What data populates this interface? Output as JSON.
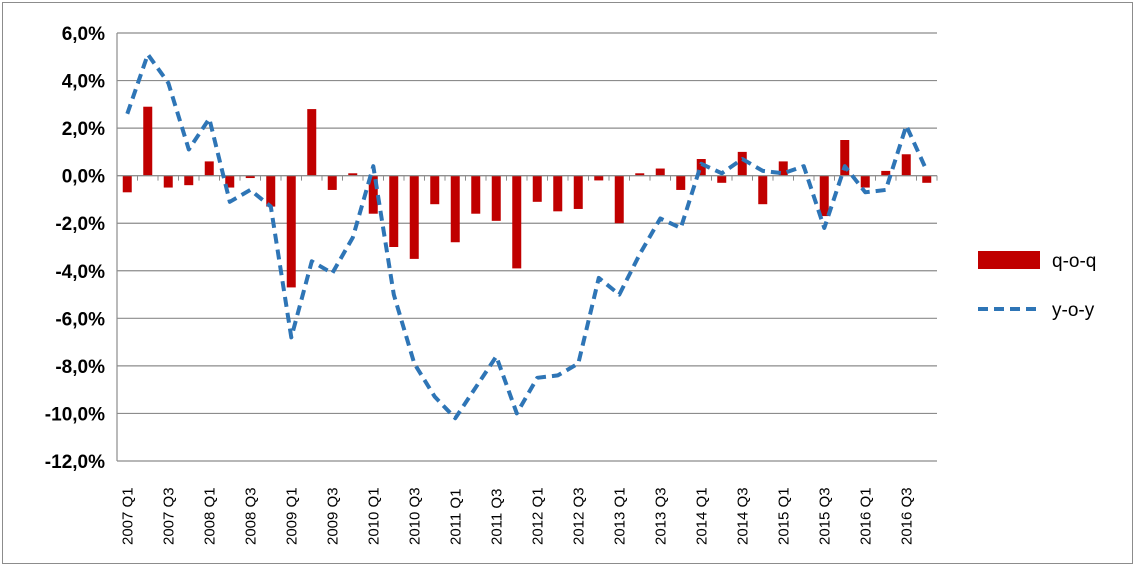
{
  "chart_data": {
    "type": "bar",
    "title": "",
    "xlabel": "",
    "ylabel": "",
    "ylim": [
      -12,
      6
    ],
    "y_ticks": [
      "6,0%",
      "4,0%",
      "2,0%",
      "0,0%",
      "-2,0%",
      "-4,0%",
      "-6,0%",
      "-8,0%",
      "-10,0%",
      "-12,0%"
    ],
    "y_tick_values": [
      6,
      4,
      2,
      0,
      -2,
      -4,
      -6,
      -8,
      -10,
      -12
    ],
    "x_labels": [
      "2007 Q1",
      "2007 Q3",
      "2008 Q1",
      "2008 Q3",
      "2009 Q1",
      "2009 Q3",
      "2010 Q1",
      "2010 Q3",
      "2011 Q1",
      "2011 Q3",
      "2012 Q1",
      "2012 Q3",
      "2013 Q1",
      "2013 Q3",
      "2014 Q1",
      "2014 Q3",
      "2015 Q1",
      "2015 Q3",
      "2016 Q1",
      "2016 Q3"
    ],
    "grid": true,
    "legend_position": "right",
    "series": [
      {
        "name": "q-o-q",
        "type": "bar",
        "color": "#c00000",
        "values": [
          -0.7,
          2.9,
          -0.5,
          -0.4,
          0.6,
          -0.5,
          -0.1,
          -1.3,
          -4.7,
          2.8,
          -0.6,
          0.1,
          -1.6,
          -3.0,
          -3.5,
          -1.2,
          -2.8,
          -1.6,
          -1.9,
          -3.9,
          -1.1,
          -1.5,
          -1.4,
          -0.2,
          -2.0,
          0.1,
          0.3,
          -0.6,
          0.7,
          -0.3,
          1.0,
          -1.2,
          0.6,
          0.0,
          -1.7,
          1.5,
          -0.5,
          0.2,
          0.9,
          -0.3
        ]
      },
      {
        "name": "y-o-y",
        "type": "line",
        "color": "#2e75b6",
        "style": "dashed",
        "values": [
          2.6,
          5.1,
          3.9,
          1.1,
          2.4,
          -1.1,
          -0.6,
          -1.3,
          -6.8,
          -3.6,
          -4.1,
          -2.6,
          0.4,
          -5.0,
          -7.9,
          -9.3,
          -10.2,
          -8.9,
          -7.6,
          -10.0,
          -8.5,
          -8.4,
          -7.9,
          -4.3,
          -5.0,
          -3.3,
          -1.8,
          -2.2,
          0.5,
          0.1,
          0.7,
          0.2,
          0.1,
          0.4,
          -2.2,
          0.4,
          -0.7,
          -0.6,
          2.1,
          0.2
        ]
      }
    ]
  }
}
